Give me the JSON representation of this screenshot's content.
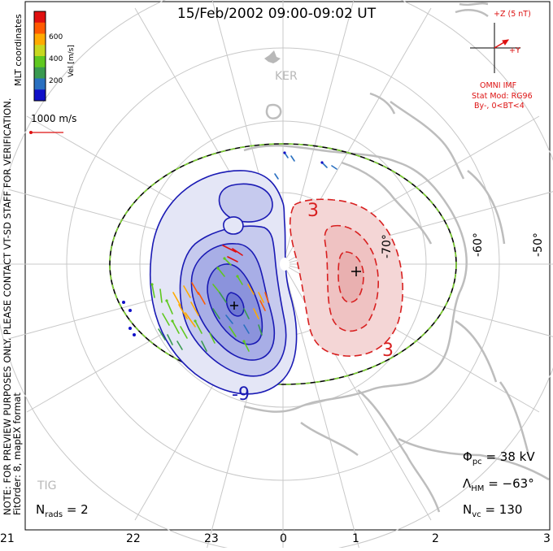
{
  "title": "15/Feb/2002 09:00-09:02 UT",
  "colorbar": {
    "label": "Vel [m/s]",
    "ticks": [
      "600",
      "400",
      "200"
    ],
    "colors": [
      "#e01010",
      "#ff5a00",
      "#ffaa00",
      "#c8d820",
      "#60c820",
      "#3a9a50",
      "#2a70c0",
      "#1010c8"
    ]
  },
  "coords_label": "MLT coordinates",
  "vector_scale_label": "1000 m/s",
  "station_labels": {
    "ker": "KER",
    "tig": "TIG"
  },
  "latitude_labels": [
    "-70°",
    "-60°",
    "-50°"
  ],
  "mlt_labels": [
    "21",
    "22",
    "23",
    "0",
    "1",
    "2",
    "3"
  ],
  "contour_labels": {
    "neg": "-9",
    "pos": "3"
  },
  "imf": {
    "z_label": "+Z (5 nT)",
    "y_label": "+Y",
    "source": "OMNI IMF",
    "model": "Stat Mod: RG96",
    "condition": "By-, 0<BT<4"
  },
  "note": "NOTE: FOR PREVIEW PURPOSES ONLY. PLEASE CONTACT VT-SD STAFF FOR VERIFICATION.",
  "fit_order": "FitOrder: 8, mapEX format",
  "stats": {
    "phi_symbol": "Φ",
    "phi_sub": "pc",
    "phi_value": "= 38 kV",
    "lambda_symbol": "Λ",
    "lambda_sub": "HM",
    "lambda_value": "= −63°",
    "nvc_symbol": "N",
    "nvc_sub": "vc",
    "nvc_value": "= 130",
    "nrads_symbol": "N",
    "nrads_sub": "rads",
    "nrads_value": "= 2"
  },
  "colors": {
    "positive": "#d82020",
    "negative": "#1010a0",
    "boundary_green": "#7cd030",
    "grid": "#c8c8c8",
    "land": "#c0c0c0"
  }
}
